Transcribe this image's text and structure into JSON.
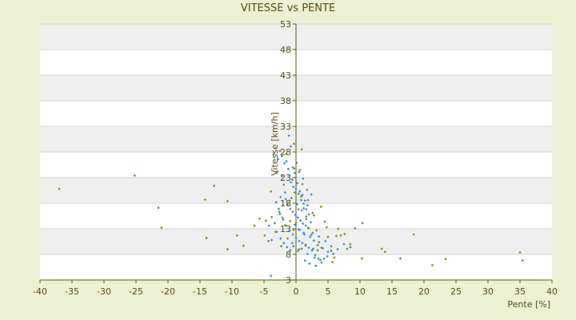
{
  "chart_data": {
    "type": "scatter",
    "title": "VITESSE vs PENTE",
    "xlabel": "Pente [%]",
    "ylabel": "Vitesse [km/h]",
    "xlim": [
      -40,
      40
    ],
    "ylim": [
      3,
      53
    ],
    "x_ticks": [
      "-40",
      "-35",
      "-30",
      "-25",
      "-20",
      "-15",
      "-10",
      "-5",
      "0",
      "5",
      "10",
      "15",
      "20",
      "25",
      "30",
      "35",
      "40"
    ],
    "y_ticks": [
      "3",
      "8",
      "13",
      "18",
      "23",
      "28",
      "33",
      "38",
      "43",
      "48",
      "53"
    ],
    "grid": true,
    "legend": "none",
    "colors": {
      "background": "#ebf1d2",
      "plot_band_light": "#ffffff",
      "plot_band_shaded": "#efefef",
      "axis": "#5a5a0a",
      "series_blue": "#3a8fd0",
      "series_olive": "#8a8a10"
    },
    "series": [
      {
        "color": "#3a8fd0",
        "points": [
          [
            -3.5,
            27.5
          ],
          [
            -2.8,
            26.6
          ],
          [
            -2.2,
            27.2
          ],
          [
            -1.8,
            25.8
          ],
          [
            -1.5,
            26.2
          ],
          [
            -1.2,
            24.7
          ],
          [
            -1.0,
            23.4
          ],
          [
            -0.8,
            22.1
          ],
          [
            -0.6,
            22.6
          ],
          [
            -0.4,
            21.2
          ],
          [
            -0.2,
            23.9
          ],
          [
            0.0,
            20.8
          ],
          [
            0.2,
            21.9
          ],
          [
            0.4,
            19.8
          ],
          [
            0.6,
            20.3
          ],
          [
            0.8,
            18.6
          ],
          [
            1.0,
            19.6
          ],
          [
            1.2,
            17.9
          ],
          [
            1.4,
            18.5
          ],
          [
            1.6,
            16.8
          ],
          [
            1.8,
            17.6
          ],
          [
            2.0,
            15.8
          ],
          [
            -1.6,
            18.8
          ],
          [
            -1.3,
            17.7
          ],
          [
            -0.9,
            16.9
          ],
          [
            -0.5,
            16.3
          ],
          [
            -0.1,
            15.7
          ],
          [
            0.3,
            15.2
          ],
          [
            0.7,
            14.6
          ],
          [
            1.1,
            14.0
          ],
          [
            1.5,
            13.6
          ],
          [
            1.9,
            13.2
          ],
          [
            -2.5,
            15.9
          ],
          [
            -2.0,
            14.8
          ],
          [
            -1.5,
            13.6
          ],
          [
            -1.0,
            12.6
          ],
          [
            -0.5,
            11.9
          ],
          [
            0.0,
            11.2
          ],
          [
            0.5,
            10.6
          ],
          [
            1.0,
            10.2
          ],
          [
            1.5,
            9.7
          ],
          [
            2.0,
            9.3
          ],
          [
            2.5,
            8.8
          ],
          [
            3.0,
            7.9
          ],
          [
            3.5,
            7.2
          ],
          [
            4.0,
            6.4
          ],
          [
            -3.0,
            12.4
          ],
          [
            -2.4,
            11.1
          ],
          [
            -1.9,
            10.2
          ],
          [
            -1.4,
            9.4
          ],
          [
            -0.9,
            8.8
          ],
          [
            0.6,
            12.8
          ],
          [
            1.3,
            11.9
          ],
          [
            2.2,
            11.4
          ],
          [
            2.8,
            10.7
          ],
          [
            3.4,
            9.8
          ],
          [
            4.2,
            9.2
          ],
          [
            5.0,
            8.5
          ],
          [
            5.8,
            8.1
          ],
          [
            -4.2,
            13.6
          ],
          [
            -3.8,
            10.8
          ],
          [
            -0.3,
            24.8
          ],
          [
            0.1,
            25.9
          ],
          [
            -1.9,
            21.6
          ],
          [
            -2.4,
            19.2
          ],
          [
            -3.1,
            18.2
          ],
          [
            1.7,
            20.6
          ],
          [
            2.4,
            19.7
          ],
          [
            1.1,
            22.8
          ],
          [
            -1.1,
            31.2
          ],
          [
            -0.8,
            29.1
          ],
          [
            -3.9,
            3.8
          ],
          [
            -0.6,
            10.2
          ],
          [
            0.9,
            9.1
          ],
          [
            2.6,
            12.2
          ],
          [
            3.6,
            11.5
          ],
          [
            4.6,
            10.6
          ],
          [
            5.5,
            9.6
          ],
          [
            6.5,
            9.0
          ],
          [
            7.5,
            10.0
          ],
          [
            8.5,
            9.4
          ],
          [
            9.2,
            13.1
          ],
          [
            1.4,
            6.8
          ],
          [
            2.1,
            6.2
          ],
          [
            3.1,
            5.8
          ],
          [
            -0.4,
            9.6
          ],
          [
            0.3,
            8.7
          ],
          [
            1.8,
            8.1
          ],
          [
            2.9,
            7.4
          ],
          [
            3.8,
            6.9
          ],
          [
            -2.2,
            23.3
          ],
          [
            0.5,
            24.1
          ],
          [
            -1.7,
            20.1
          ],
          [
            -0.7,
            19.0
          ],
          [
            0.2,
            17.8
          ],
          [
            0.9,
            16.6
          ],
          [
            1.6,
            15.4
          ],
          [
            2.3,
            14.3
          ],
          [
            -2.7,
            16.9
          ],
          [
            -3.3,
            14.1
          ],
          [
            -0.2,
            13.8
          ],
          [
            0.4,
            12.9
          ],
          [
            1.2,
            12.2
          ],
          [
            2.7,
            9.1
          ],
          [
            4.9,
            7.6
          ]
        ]
      },
      {
        "color": "#8a8a10",
        "points": [
          [
            -37.0,
            20.8
          ],
          [
            -25.2,
            23.4
          ],
          [
            -21.5,
            17.1
          ],
          [
            -21.0,
            13.2
          ],
          [
            -14.2,
            18.7
          ],
          [
            -12.8,
            21.4
          ],
          [
            -14.0,
            11.2
          ],
          [
            -10.7,
            9.0
          ],
          [
            -10.7,
            18.4
          ],
          [
            -9.2,
            11.7
          ],
          [
            -8.2,
            9.7
          ],
          [
            -6.5,
            13.6
          ],
          [
            -5.7,
            15.0
          ],
          [
            -4.9,
            11.7
          ],
          [
            -4.7,
            14.6
          ],
          [
            -4.3,
            10.6
          ],
          [
            -3.8,
            15.3
          ],
          [
            -3.2,
            12.4
          ],
          [
            -2.6,
            16.3
          ],
          [
            -2.1,
            15.2
          ],
          [
            -1.7,
            13.7
          ],
          [
            -1.3,
            11.1
          ],
          [
            -0.9,
            14.5
          ],
          [
            -0.4,
            12.8
          ],
          [
            0.0,
            14.2
          ],
          [
            0.4,
            16.8
          ],
          [
            0.8,
            19.3
          ],
          [
            1.2,
            17.0
          ],
          [
            1.6,
            14.9
          ],
          [
            2.0,
            13.1
          ],
          [
            2.4,
            11.8
          ],
          [
            2.8,
            15.6
          ],
          [
            3.2,
            12.7
          ],
          [
            3.6,
            10.4
          ],
          [
            4.0,
            9.3
          ],
          [
            4.5,
            14.4
          ],
          [
            5.0,
            11.4
          ],
          [
            5.5,
            8.7
          ],
          [
            6.0,
            7.4
          ],
          [
            6.6,
            13.0
          ],
          [
            7.0,
            11.7
          ],
          [
            7.6,
            12.0
          ],
          [
            8.0,
            9.1
          ],
          [
            8.5,
            10.0
          ],
          [
            10.3,
            7.2
          ],
          [
            10.4,
            14.1
          ],
          [
            13.4,
            9.1
          ],
          [
            13.9,
            8.5
          ],
          [
            16.3,
            7.2
          ],
          [
            18.4,
            11.9
          ],
          [
            21.3,
            5.9
          ],
          [
            23.4,
            7.1
          ],
          [
            35.0,
            8.4
          ],
          [
            35.4,
            6.8
          ],
          [
            -1.5,
            27.6
          ],
          [
            -0.5,
            25.0
          ],
          [
            0.6,
            24.5
          ],
          [
            1.0,
            21.7
          ],
          [
            -2.9,
            24.2
          ],
          [
            -3.9,
            20.3
          ],
          [
            -0.2,
            20.1
          ],
          [
            1.9,
            18.6
          ],
          [
            3.9,
            17.3
          ],
          [
            4.8,
            13.3
          ],
          [
            6.3,
            11.6
          ],
          [
            -1.0,
            18.5
          ],
          [
            2.6,
            16.1
          ],
          [
            0.5,
            9.0
          ],
          [
            -2.3,
            9.6
          ],
          [
            1.5,
            9.9
          ],
          [
            3.4,
            8.8
          ],
          [
            4.4,
            7.2
          ],
          [
            5.7,
            6.5
          ],
          [
            0.9,
            28.5
          ],
          [
            -0.3,
            29.6
          ],
          [
            -2.5,
            28.2
          ]
        ]
      }
    ]
  }
}
